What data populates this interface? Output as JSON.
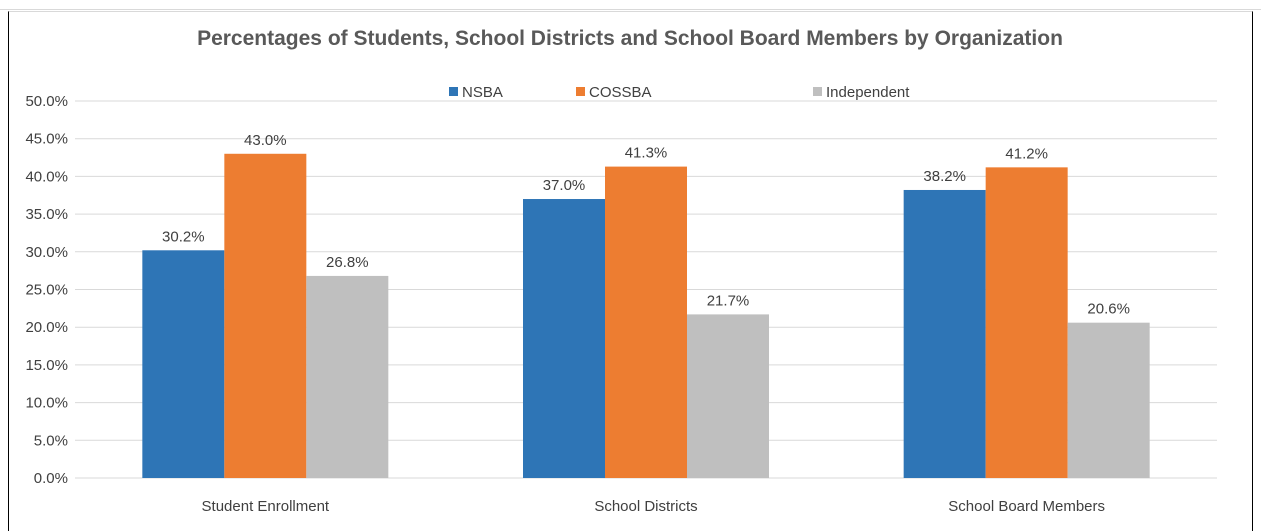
{
  "chart_data": {
    "type": "bar",
    "title": "Percentages of Students, School Districts and School Board Members by Organization",
    "xlabel": "",
    "ylabel": "",
    "ylim": [
      0,
      50
    ],
    "ytick_step": 5,
    "ytick_format": "percent-1dp",
    "grid": true,
    "legend_position": "top",
    "categories": [
      "Student Enrollment",
      "School Districts",
      "School Board Members"
    ],
    "series": [
      {
        "name": "NSBA",
        "color": "#2e75b6",
        "values": [
          30.2,
          37.0,
          38.2
        ],
        "labels": [
          "30.2%",
          "37.0%",
          "38.2%"
        ]
      },
      {
        "name": "COSSBA",
        "color": "#ed7d31",
        "values": [
          43.0,
          41.3,
          41.2
        ],
        "labels": [
          "43.0%",
          "41.3%",
          "41.2%"
        ]
      },
      {
        "name": "Independent",
        "color": "#bfbfbf",
        "values": [
          26.8,
          21.7,
          20.6
        ],
        "labels": [
          "26.8%",
          "21.7%",
          "20.6%"
        ]
      }
    ]
  }
}
